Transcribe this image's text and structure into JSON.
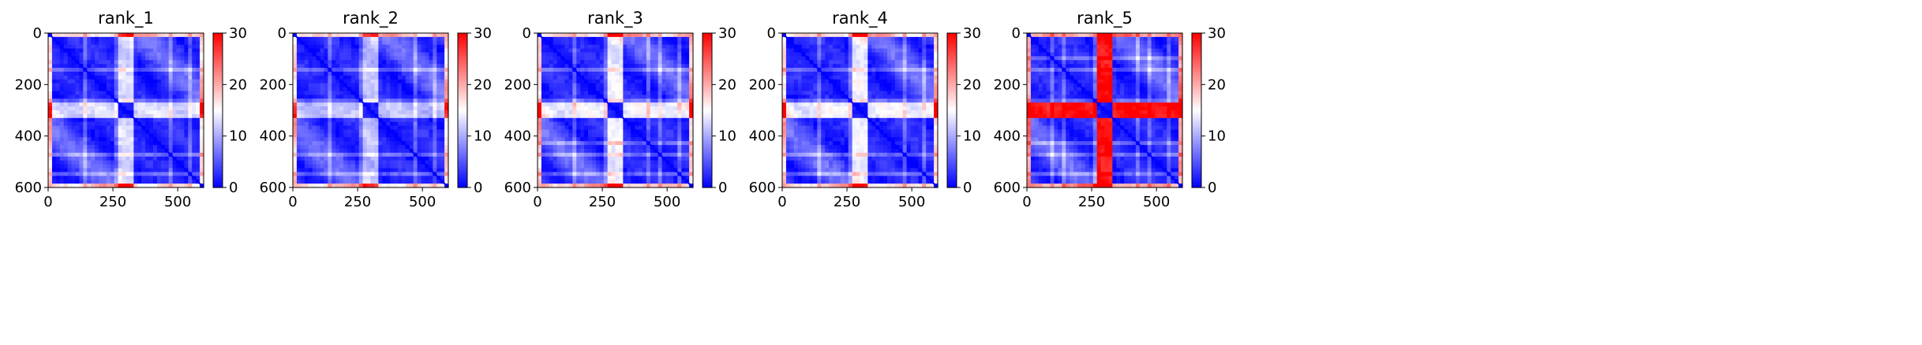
{
  "chart_data": [
    {
      "type": "heatmap",
      "title": "rank_1",
      "xlim": [
        0,
        600
      ],
      "ylim": [
        600,
        0
      ],
      "xticks": [
        0,
        250,
        500
      ],
      "yticks": [
        0,
        200,
        400,
        600
      ],
      "colorbar": {
        "min": 0,
        "max": 30,
        "ticks": [
          0,
          10,
          20,
          30
        ],
        "colors": [
          "#0000ff",
          "#ffffff",
          "#ff0000"
        ]
      },
      "domain_boundaries": [
        270,
        330
      ],
      "stripes": [
        140,
        260,
        300,
        330,
        470,
        510,
        550
      ],
      "interdomain_level": 0.35,
      "edge_level": 0.5
    },
    {
      "type": "heatmap",
      "title": "rank_2",
      "xlim": [
        0,
        600
      ],
      "ylim": [
        600,
        0
      ],
      "xticks": [
        0,
        250,
        500
      ],
      "yticks": [
        0,
        200,
        400,
        600
      ],
      "colorbar": {
        "min": 0,
        "max": 30,
        "ticks": [
          0,
          10,
          20,
          30
        ],
        "colors": [
          "#0000ff",
          "#ffffff",
          "#ff0000"
        ]
      },
      "domain_boundaries": [
        270,
        330
      ],
      "stripes": [
        140,
        260,
        300,
        330,
        470,
        510,
        550
      ],
      "interdomain_level": 0.3,
      "edge_level": 0.5
    },
    {
      "type": "heatmap",
      "title": "rank_3",
      "xlim": [
        0,
        600
      ],
      "ylim": [
        600,
        0
      ],
      "xticks": [
        0,
        250,
        500
      ],
      "yticks": [
        0,
        200,
        400,
        600
      ],
      "colorbar": {
        "min": 0,
        "max": 30,
        "ticks": [
          0,
          10,
          20,
          30
        ],
        "colors": [
          "#0000ff",
          "#ffffff",
          "#ff0000"
        ]
      },
      "domain_boundaries": [
        265,
        330
      ],
      "stripes": [
        140,
        260,
        300,
        330,
        430,
        470,
        510,
        550
      ],
      "interdomain_level": 0.4,
      "edge_level": 0.55
    },
    {
      "type": "heatmap",
      "title": "rank_4",
      "xlim": [
        0,
        600
      ],
      "ylim": [
        600,
        0
      ],
      "xticks": [
        0,
        250,
        500
      ],
      "yticks": [
        0,
        200,
        400,
        600
      ],
      "colorbar": {
        "min": 0,
        "max": 30,
        "ticks": [
          0,
          10,
          20,
          30
        ],
        "colors": [
          "#0000ff",
          "#ffffff",
          "#ff0000"
        ]
      },
      "domain_boundaries": [
        265,
        330
      ],
      "stripes": [
        140,
        260,
        300,
        330,
        470,
        510,
        550
      ],
      "interdomain_level": 0.4,
      "edge_level": 0.5
    },
    {
      "type": "heatmap",
      "title": "rank_5",
      "xlim": [
        0,
        600
      ],
      "ylim": [
        600,
        0
      ],
      "xticks": [
        0,
        250,
        500
      ],
      "yticks": [
        0,
        200,
        400,
        600
      ],
      "colorbar": {
        "min": 0,
        "max": 30,
        "ticks": [
          0,
          10,
          20,
          30
        ],
        "colors": [
          "#0000ff",
          "#ffffff",
          "#ff0000"
        ]
      },
      "domain_boundaries": [
        265,
        330
      ],
      "stripes": [
        100,
        140,
        260,
        300,
        330,
        430,
        470,
        510,
        550
      ],
      "interdomain_level": 0.9,
      "edge_level": 0.7
    }
  ]
}
